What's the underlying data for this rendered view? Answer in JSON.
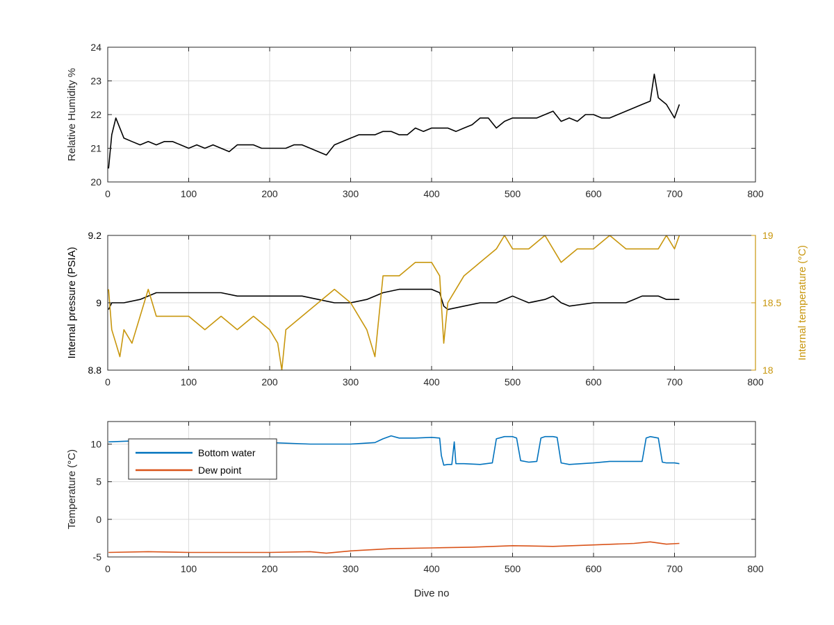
{
  "colors": {
    "black": "#000000",
    "orange_axis": "#c8960c",
    "blue": "#0072bd",
    "red": "#d95319",
    "grid": "#dcdcdc",
    "axis": "#262626"
  },
  "chart_data": [
    {
      "type": "line",
      "xlabel": "",
      "ylabel": "Relative Humidity %",
      "xlim": [
        0,
        800
      ],
      "ylim": [
        20,
        24
      ],
      "xticks": [
        0,
        100,
        200,
        300,
        400,
        500,
        600,
        700,
        800
      ],
      "yticks": [
        20,
        21,
        22,
        23,
        24
      ],
      "grid": true,
      "series": [
        {
          "color": "#000000",
          "x": [
            1,
            5,
            10,
            20,
            30,
            40,
            50,
            60,
            70,
            80,
            90,
            100,
            110,
            120,
            130,
            140,
            150,
            160,
            170,
            180,
            190,
            200,
            210,
            220,
            230,
            240,
            250,
            260,
            270,
            280,
            290,
            300,
            310,
            320,
            330,
            340,
            350,
            360,
            370,
            380,
            390,
            400,
            410,
            420,
            430,
            440,
            450,
            460,
            470,
            480,
            490,
            500,
            510,
            520,
            530,
            540,
            550,
            560,
            570,
            580,
            590,
            600,
            610,
            620,
            630,
            640,
            650,
            660,
            670,
            675,
            680,
            690,
            700,
            706
          ],
          "y": [
            20.4,
            21.4,
            21.9,
            21.3,
            21.2,
            21.1,
            21.2,
            21.1,
            21.2,
            21.2,
            21.1,
            21.0,
            21.1,
            21.0,
            21.1,
            21.0,
            20.9,
            21.1,
            21.1,
            21.1,
            21.0,
            21.0,
            21.0,
            21.0,
            21.1,
            21.1,
            21.0,
            20.9,
            20.8,
            21.1,
            21.2,
            21.3,
            21.4,
            21.4,
            21.4,
            21.5,
            21.5,
            21.4,
            21.4,
            21.6,
            21.5,
            21.6,
            21.6,
            21.6,
            21.5,
            21.6,
            21.7,
            21.9,
            21.9,
            21.6,
            21.8,
            21.9,
            21.9,
            21.9,
            21.9,
            22.0,
            22.1,
            21.8,
            21.9,
            21.8,
            22.0,
            22.0,
            21.9,
            21.9,
            22.0,
            22.1,
            22.2,
            22.3,
            22.4,
            23.2,
            22.5,
            22.3,
            21.9,
            22.3
          ]
        }
      ]
    },
    {
      "type": "line",
      "xlabel": "",
      "ylabel": "Internal pressure (PSIA)",
      "ylabel_right": "Internal temperature (°C)",
      "xlim": [
        0,
        800
      ],
      "ylim": [
        8.8,
        9.2
      ],
      "ylim_right": [
        18,
        19
      ],
      "xticks": [
        0,
        100,
        200,
        300,
        400,
        500,
        600,
        700,
        800
      ],
      "yticks": [
        8.8,
        9,
        9.2
      ],
      "yticks_right": [
        18,
        18.5,
        19
      ],
      "grid": true,
      "series": [
        {
          "axis": "left",
          "color": "#000000",
          "x": [
            1,
            5,
            20,
            40,
            60,
            80,
            100,
            120,
            140,
            160,
            180,
            200,
            220,
            240,
            260,
            280,
            300,
            320,
            340,
            360,
            380,
            400,
            410,
            415,
            420,
            440,
            460,
            480,
            490,
            500,
            510,
            520,
            540,
            550,
            560,
            570,
            600,
            620,
            640,
            650,
            660,
            670,
            680,
            690,
            700,
            706
          ],
          "y": [
            8.98,
            9.0,
            9.0,
            9.01,
            9.03,
            9.03,
            9.03,
            9.03,
            9.03,
            9.02,
            9.02,
            9.02,
            9.02,
            9.02,
            9.01,
            9.0,
            9.0,
            9.01,
            9.03,
            9.04,
            9.04,
            9.04,
            9.03,
            8.99,
            8.98,
            8.99,
            9.0,
            9.0,
            9.01,
            9.02,
            9.01,
            9.0,
            9.01,
            9.02,
            9.0,
            8.99,
            9.0,
            9.0,
            9.0,
            9.01,
            9.02,
            9.02,
            9.02,
            9.01,
            9.01,
            9.01
          ]
        },
        {
          "axis": "right",
          "color": "#c8960c",
          "x": [
            1,
            5,
            10,
            15,
            20,
            30,
            40,
            50,
            60,
            80,
            100,
            120,
            140,
            160,
            180,
            200,
            210,
            215,
            220,
            240,
            260,
            280,
            300,
            320,
            330,
            340,
            350,
            360,
            380,
            400,
            410,
            415,
            420,
            430,
            440,
            460,
            480,
            490,
            500,
            520,
            540,
            560,
            580,
            600,
            620,
            640,
            660,
            680,
            690,
            700,
            706
          ],
          "y": [
            18.6,
            18.3,
            18.2,
            18.1,
            18.3,
            18.2,
            18.4,
            18.6,
            18.4,
            18.4,
            18.4,
            18.3,
            18.4,
            18.3,
            18.4,
            18.3,
            18.2,
            18.0,
            18.3,
            18.4,
            18.5,
            18.6,
            18.5,
            18.3,
            18.1,
            18.7,
            18.7,
            18.7,
            18.8,
            18.8,
            18.7,
            18.2,
            18.5,
            18.6,
            18.7,
            18.8,
            18.9,
            19.0,
            18.9,
            18.9,
            19.0,
            18.8,
            18.9,
            18.9,
            19.0,
            18.9,
            18.9,
            18.9,
            19.0,
            18.9,
            19.0
          ]
        }
      ]
    },
    {
      "type": "line",
      "xlabel": "Dive no",
      "ylabel": "Temperature (°C)",
      "xlim": [
        0,
        800
      ],
      "ylim": [
        -5,
        13
      ],
      "xticks": [
        0,
        100,
        200,
        300,
        400,
        500,
        600,
        700,
        800
      ],
      "yticks": [
        -5,
        0,
        5,
        10
      ],
      "grid": true,
      "legend": "top-left",
      "series": [
        {
          "name": "Bottom water",
          "color": "#0072bd",
          "x": [
            1,
            50,
            100,
            150,
            200,
            250,
            300,
            330,
            340,
            350,
            360,
            380,
            400,
            410,
            412,
            415,
            420,
            425,
            428,
            430,
            432,
            440,
            460,
            475,
            480,
            490,
            500,
            505,
            510,
            520,
            530,
            535,
            540,
            550,
            555,
            560,
            570,
            600,
            620,
            650,
            660,
            665,
            670,
            680,
            685,
            690,
            700,
            706
          ],
          "y": [
            10.3,
            10.5,
            10.5,
            10.2,
            10.2,
            10.0,
            10.0,
            10.2,
            10.7,
            11.1,
            10.8,
            10.8,
            10.9,
            10.8,
            8.5,
            7.2,
            7.3,
            7.3,
            10.3,
            7.4,
            7.4,
            7.4,
            7.3,
            7.5,
            10.7,
            11.0,
            11.0,
            10.8,
            7.8,
            7.6,
            7.7,
            10.8,
            11.0,
            11.0,
            10.9,
            7.5,
            7.3,
            7.5,
            7.7,
            7.7,
            7.7,
            10.8,
            11.0,
            10.8,
            7.6,
            7.5,
            7.5,
            7.4
          ]
        },
        {
          "name": "Dew point",
          "color": "#d95319",
          "x": [
            1,
            50,
            100,
            150,
            200,
            250,
            270,
            300,
            350,
            400,
            450,
            500,
            550,
            600,
            650,
            670,
            690,
            706
          ],
          "y": [
            -4.4,
            -4.3,
            -4.4,
            -4.4,
            -4.4,
            -4.3,
            -4.5,
            -4.2,
            -3.9,
            -3.8,
            -3.7,
            -3.5,
            -3.6,
            -3.4,
            -3.2,
            -3.0,
            -3.3,
            -3.2
          ]
        }
      ]
    }
  ]
}
